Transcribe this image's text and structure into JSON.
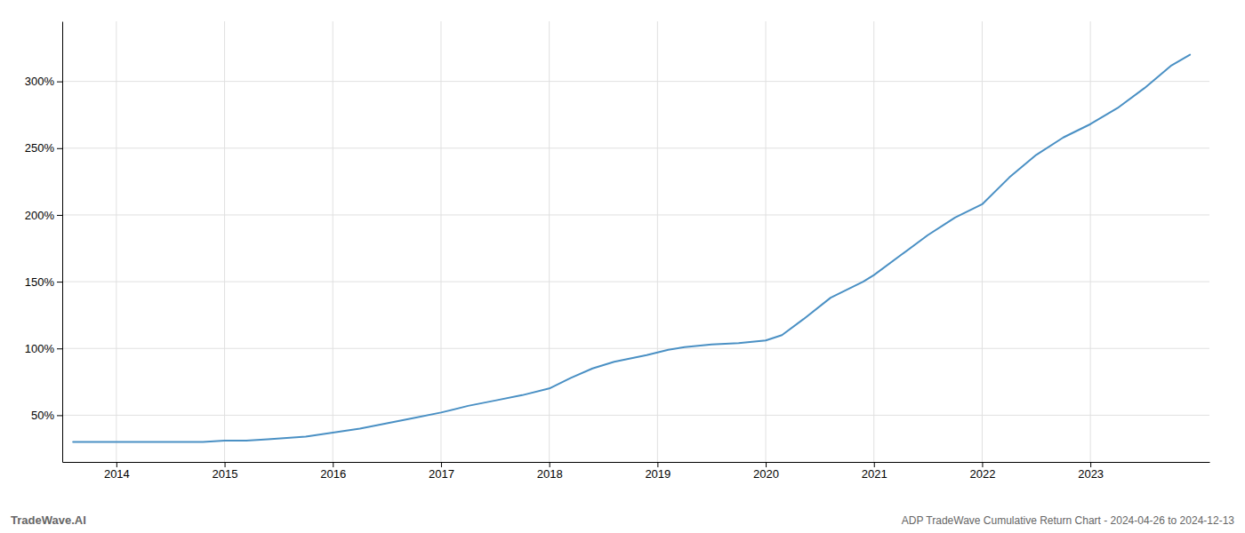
{
  "chart_data": {
    "type": "line",
    "title": "ADP TradeWave Cumulative Return Chart - 2024-04-26 to 2024-12-13",
    "annotations": [
      "TradeWave.AI"
    ],
    "x": [
      2013.6,
      2014.0,
      2014.2,
      2014.4,
      2014.6,
      2014.8,
      2015.0,
      2015.2,
      2015.4,
      2015.75,
      2016.0,
      2016.25,
      2016.5,
      2016.75,
      2017.0,
      2017.25,
      2017.5,
      2017.75,
      2018.0,
      2018.2,
      2018.4,
      2018.6,
      2018.9,
      2019.0,
      2019.1,
      2019.25,
      2019.5,
      2019.75,
      2020.0,
      2020.15,
      2020.35,
      2020.6,
      2020.9,
      2021.0,
      2021.25,
      2021.5,
      2021.75,
      2022.0,
      2022.25,
      2022.5,
      2022.75,
      2023.0,
      2023.25,
      2023.5,
      2023.75,
      2023.92
    ],
    "values": [
      30,
      30,
      30,
      30,
      30,
      30,
      31,
      31,
      32,
      34,
      37,
      40,
      44,
      48,
      52,
      57,
      61,
      65,
      70,
      78,
      85,
      90,
      95,
      97,
      99,
      101,
      103,
      104,
      106,
      110,
      122,
      138,
      150,
      155,
      170,
      185,
      198,
      208,
      228,
      245,
      258,
      268,
      280,
      295,
      312,
      320
    ],
    "color": "#4a90c4",
    "xlim": [
      2013.5,
      2024.1
    ],
    "ylim": [
      15,
      345
    ],
    "xticks": [
      2014,
      2015,
      2016,
      2017,
      2018,
      2019,
      2020,
      2021,
      2022,
      2023
    ],
    "yticks": [
      {
        "value": 50,
        "label": "50%"
      },
      {
        "value": 100,
        "label": "100%"
      },
      {
        "value": 150,
        "label": "150%"
      },
      {
        "value": 200,
        "label": "200%"
      },
      {
        "value": 250,
        "label": "250%"
      },
      {
        "value": 300,
        "label": "300%"
      }
    ],
    "grid": true
  }
}
